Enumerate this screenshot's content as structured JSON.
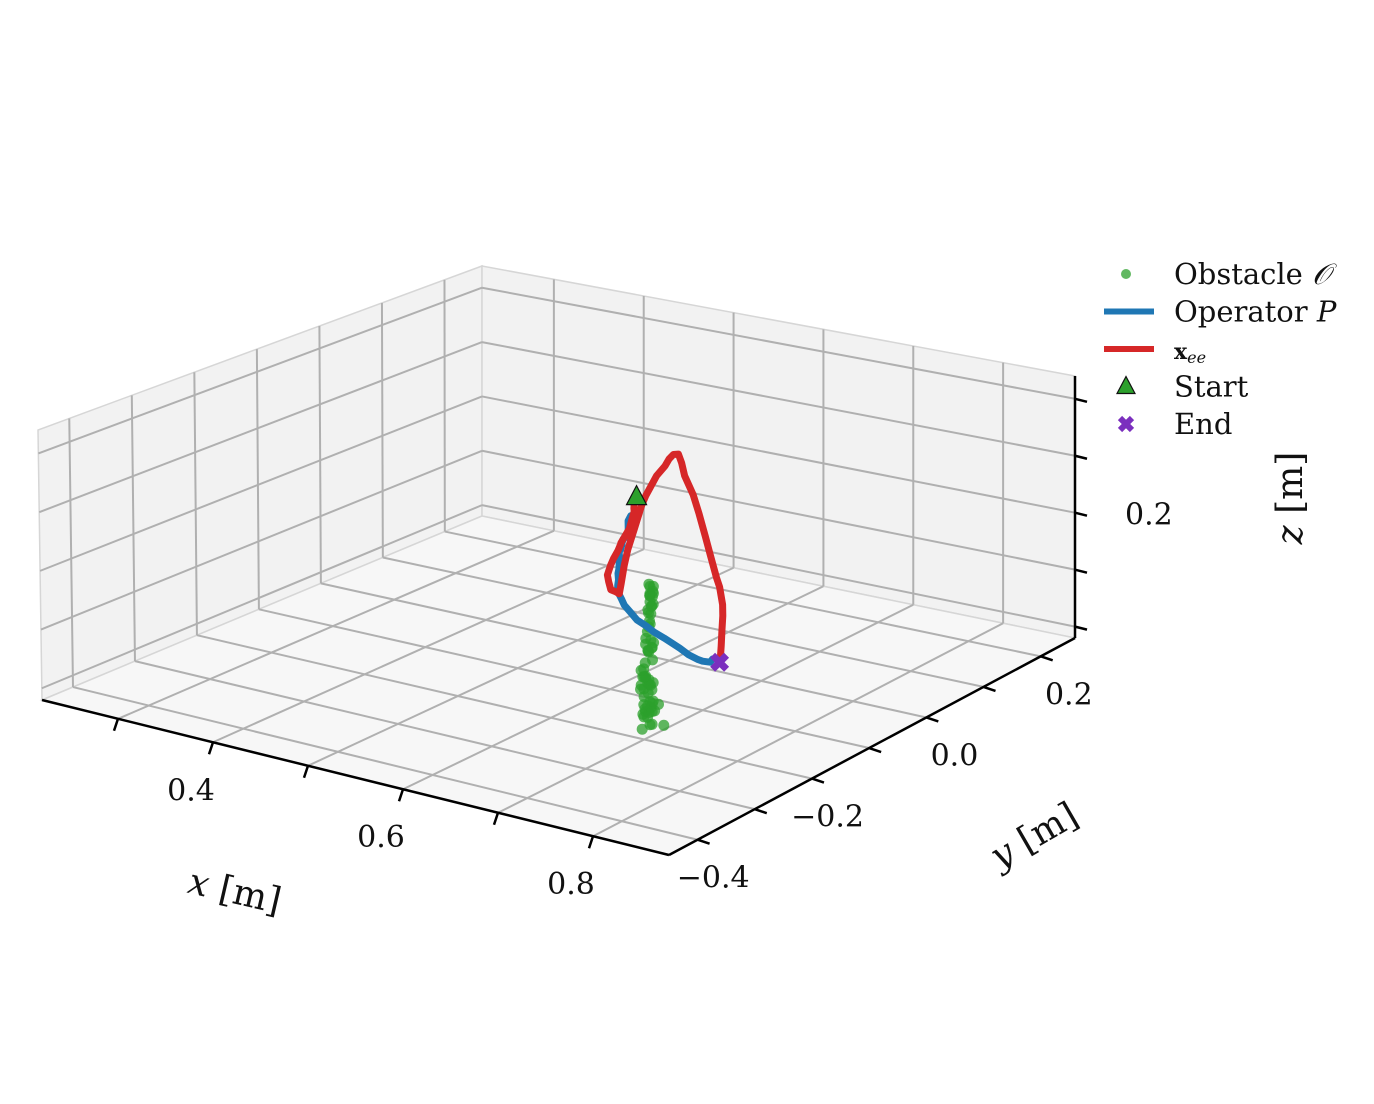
{
  "chart_data": {
    "type": "scatter",
    "projection": "3d",
    "xlabel": "x [m]",
    "ylabel": "y [m]",
    "zlabel": "z [m]",
    "x_ticks": [
      0.4,
      0.6,
      0.8
    ],
    "x_tick_labels": [
      "0.4",
      "0.6",
      "0.8"
    ],
    "y_ticks": [
      -0.4,
      -0.2,
      0.0,
      0.2
    ],
    "y_tick_labels": [
      "−0.4",
      "−0.2",
      "0.0",
      "0.2"
    ],
    "z_ticks": [
      0.2
    ],
    "z_tick_labels": [
      "0.2"
    ],
    "xlim": [
      0.22,
      0.88
    ],
    "ylim": [
      -0.45,
      0.26
    ],
    "zlim": [
      -0.02,
      0.44
    ],
    "grid": true,
    "legend_position": "right",
    "legend": [
      {
        "label": "Obstacle ",
        "math": "𝒪",
        "marker": "dot",
        "color": "#2ca02c"
      },
      {
        "label": "Operator ",
        "math": "P",
        "marker": "line",
        "color": "#1f77b4"
      },
      {
        "label": "",
        "math": "x_ee",
        "marker": "line",
        "color": "#d62728"
      },
      {
        "label": "Start",
        "math": "",
        "marker": "triangle",
        "color": "#2ca02c"
      },
      {
        "label": "End",
        "math": "",
        "marker": "x",
        "color": "#7b2fbe"
      }
    ],
    "series": [
      {
        "name": "Operator P",
        "kind": "line",
        "color": "#1f77b4",
        "points": [
          [
            0.414,
            0.218,
            0.066
          ],
          [
            0.419,
            0.206,
            0.064
          ],
          [
            0.426,
            0.196,
            0.045
          ],
          [
            0.431,
            0.18,
            0.048
          ],
          [
            0.437,
            0.169,
            0.048
          ],
          [
            0.445,
            0.157,
            0.053
          ],
          [
            0.45,
            0.148,
            0.055
          ],
          [
            0.458,
            0.135,
            0.059
          ],
          [
            0.465,
            0.122,
            0.066
          ],
          [
            0.474,
            0.109,
            0.07
          ],
          [
            0.485,
            0.093,
            0.075
          ],
          [
            0.495,
            0.077,
            0.078
          ],
          [
            0.506,
            0.06,
            0.079
          ],
          [
            0.516,
            0.043,
            0.082
          ],
          [
            0.527,
            0.027,
            0.082
          ],
          [
            0.538,
            0.009,
            0.086
          ],
          [
            0.55,
            -0.01,
            0.088
          ],
          [
            0.569,
            -0.033,
            0.093
          ],
          [
            0.586,
            -0.054,
            0.097
          ],
          [
            0.607,
            -0.077,
            0.104
          ],
          [
            0.631,
            -0.103,
            0.111
          ],
          [
            0.654,
            -0.123,
            0.118
          ],
          [
            0.676,
            -0.145,
            0.126
          ],
          [
            0.701,
            -0.167,
            0.135
          ],
          [
            0.722,
            -0.186,
            0.142
          ],
          [
            0.744,
            -0.209,
            0.153
          ],
          [
            0.768,
            -0.232,
            0.161
          ],
          [
            0.789,
            -0.25,
            0.169
          ],
          [
            0.8,
            -0.26,
            0.175
          ],
          [
            0.816,
            -0.273,
            0.185
          ],
          [
            0.823,
            -0.28,
            0.196
          ]
        ]
      },
      {
        "name": "x_ee",
        "kind": "line",
        "color": "#d62728",
        "points": [
          [
            0.405,
            0.237,
            0.078
          ],
          [
            0.41,
            0.229,
            0.073
          ],
          [
            0.415,
            0.222,
            0.072
          ],
          [
            0.421,
            0.205,
            0.051
          ],
          [
            0.423,
            0.188,
            0.034
          ],
          [
            0.429,
            0.179,
            0.039
          ],
          [
            0.44,
            0.158,
            0.041
          ],
          [
            0.451,
            0.134,
            0.042
          ],
          [
            0.463,
            0.111,
            0.045
          ],
          [
            0.48,
            0.08,
            0.049
          ],
          [
            0.496,
            0.058,
            0.053
          ],
          [
            0.514,
            0.034,
            0.057
          ],
          [
            0.529,
            0.019,
            0.066
          ],
          [
            0.539,
            0.01,
            0.07
          ],
          [
            0.543,
            0.007,
            0.091
          ],
          [
            0.547,
            0.006,
            0.124
          ],
          [
            0.551,
            0.006,
            0.153
          ],
          [
            0.557,
            0.008,
            0.191
          ],
          [
            0.563,
            0.011,
            0.232
          ],
          [
            0.567,
            0.012,
            0.25
          ],
          [
            0.576,
            0.016,
            0.285
          ],
          [
            0.584,
            0.018,
            0.304
          ],
          [
            0.589,
            0.017,
            0.318
          ],
          [
            0.597,
            0.012,
            0.331
          ],
          [
            0.607,
            0.005,
            0.338
          ],
          [
            0.624,
            -0.016,
            0.338
          ],
          [
            0.644,
            -0.042,
            0.334
          ],
          [
            0.675,
            -0.076,
            0.327
          ],
          [
            0.701,
            -0.107,
            0.317
          ],
          [
            0.729,
            -0.141,
            0.304
          ],
          [
            0.75,
            -0.166,
            0.291
          ],
          [
            0.776,
            -0.197,
            0.276
          ],
          [
            0.788,
            -0.211,
            0.271
          ],
          [
            0.806,
            -0.235,
            0.259
          ],
          [
            0.813,
            -0.246,
            0.248
          ],
          [
            0.82,
            -0.259,
            0.231
          ],
          [
            0.826,
            -0.27,
            0.214
          ],
          [
            0.831,
            -0.28,
            0.197
          ]
        ]
      },
      {
        "name": "Obstacle 𝒪",
        "kind": "scatter",
        "color": "#2ca02c",
        "points": [
          [
            0.7,
            -0.19,
            0.0
          ],
          [
            0.701,
            -0.188,
            0.0
          ],
          [
            0.699,
            -0.19,
            0.02
          ],
          [
            0.711,
            -0.184,
            0.0
          ],
          [
            0.701,
            -0.205,
            0.0
          ],
          [
            0.686,
            -0.168,
            0.023
          ],
          [
            0.693,
            -0.175,
            0.025
          ],
          [
            0.684,
            -0.175,
            0.0
          ],
          [
            0.68,
            -0.166,
            0.003
          ],
          [
            0.688,
            -0.175,
            0.02
          ],
          [
            0.681,
            -0.172,
            0.002
          ],
          [
            0.689,
            -0.181,
            0.018
          ],
          [
            0.698,
            -0.179,
            0.017
          ],
          [
            0.686,
            -0.166,
            0.012
          ],
          [
            0.698,
            -0.191,
            0.012
          ],
          [
            0.691,
            -0.172,
            0.01
          ],
          [
            0.694,
            -0.191,
            0.032
          ],
          [
            0.676,
            -0.162,
            0.025
          ],
          [
            0.706,
            -0.185,
            0.034
          ],
          [
            0.699,
            -0.183,
            0.036
          ],
          [
            0.68,
            -0.162,
            0.049
          ],
          [
            0.693,
            -0.18,
            0.06
          ],
          [
            0.695,
            -0.185,
            0.049
          ],
          [
            0.698,
            -0.203,
            0.065
          ],
          [
            0.685,
            -0.165,
            0.049
          ],
          [
            0.689,
            -0.18,
            0.07
          ],
          [
            0.696,
            -0.194,
            0.061
          ],
          [
            0.697,
            -0.187,
            0.073
          ],
          [
            0.684,
            -0.159,
            0.05
          ],
          [
            0.695,
            -0.197,
            0.068
          ],
          [
            0.69,
            -0.184,
            0.074
          ],
          [
            0.693,
            -0.186,
            0.077
          ],
          [
            0.698,
            -0.199,
            0.084
          ],
          [
            0.692,
            -0.174,
            0.048
          ],
          [
            0.688,
            -0.186,
            0.085
          ],
          [
            0.694,
            -0.191,
            0.092
          ],
          [
            0.695,
            -0.19,
            0.102
          ],
          [
            0.683,
            -0.165,
            0.104
          ],
          [
            0.677,
            -0.149,
            0.081
          ],
          [
            0.683,
            -0.166,
            0.107
          ],
          [
            0.674,
            -0.156,
            0.11
          ],
          [
            0.679,
            -0.16,
            0.103
          ],
          [
            0.678,
            -0.162,
            0.124
          ],
          [
            0.682,
            -0.155,
            0.115
          ],
          [
            0.679,
            -0.153,
            0.104
          ],
          [
            0.681,
            -0.156,
            0.107
          ],
          [
            0.676,
            -0.156,
            0.132
          ],
          [
            0.679,
            -0.155,
            0.118
          ],
          [
            0.68,
            -0.16,
            0.143
          ],
          [
            0.682,
            -0.162,
            0.155
          ],
          [
            0.672,
            -0.145,
            0.138
          ],
          [
            0.674,
            -0.147,
            0.157
          ],
          [
            0.669,
            -0.143,
            0.155
          ],
          [
            0.662,
            -0.133,
            0.153
          ],
          [
            0.666,
            -0.136,
            0.18
          ],
          [
            0.663,
            -0.128,
            0.157
          ],
          [
            0.665,
            -0.132,
            0.16
          ],
          [
            0.663,
            -0.131,
            0.166
          ],
          [
            0.669,
            -0.135,
            0.166
          ],
          [
            0.665,
            -0.13,
            0.175
          ],
          [
            0.666,
            -0.136,
            0.18
          ],
          [
            0.668,
            -0.133,
            0.183
          ],
          [
            0.661,
            -0.128,
            0.178
          ],
          [
            0.661,
            -0.128,
            0.19
          ],
          [
            0.668,
            -0.134,
            0.187
          ],
          [
            0.668,
            -0.133,
            0.195
          ],
          [
            0.665,
            -0.136,
            0.199
          ]
        ],
        "alpha": 0.75
      },
      {
        "name": "Start",
        "kind": "marker",
        "marker": "triangle",
        "color": "#2ca02c",
        "points": [
          [
            0.392,
            0.26,
            0.073
          ]
        ]
      },
      {
        "name": "End",
        "kind": "marker",
        "marker": "x",
        "color": "#7b2fbe",
        "points": [
          [
            0.831,
            -0.281,
            0.194
          ]
        ]
      }
    ]
  }
}
